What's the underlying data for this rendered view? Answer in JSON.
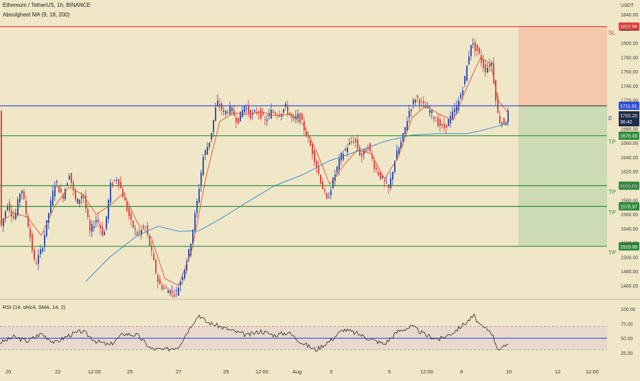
{
  "header": {
    "symbol_title": "Ethereum / TetherUS, 1h, BINANCE",
    "indicator_title": "Aboulgheet MA (9, 18, 200)",
    "currency": "USDT"
  },
  "rsi_panel": {
    "title": "RSI (14, ohlc4, SMA, 14, 2)",
    "ticks": [
      "100.00",
      "75.00",
      "50.00",
      "25.00"
    ]
  },
  "colors": {
    "background": "#f0e6c8",
    "up_candle": "#1f3fa8",
    "down_candle": "#e0332f",
    "ma_fast": "#e05a3a",
    "ma_slow": "#3a8fd0",
    "stop_zone": "#f3c2a8",
    "target_zone": "#c8d9b0",
    "sl_line": "#e03c3c",
    "entry_line": "#2f4fd8",
    "tp_line": "#2e8b3a",
    "rsi_line": "#222222",
    "rsi_band": "#e8d6cc"
  },
  "chart_data": {
    "type": "candlestick",
    "title": "Ethereum / TetherUS, 1h, BINANCE",
    "ylabel": "USDT",
    "ylim": [
      1440,
      1850
    ],
    "y_ticks": [
      "1840.00",
      "1820.00",
      "1800.00",
      "1780.00",
      "1760.00",
      "1740.00",
      "1720.00",
      "1700.00",
      "1680.00",
      "1660.00",
      "1640.00",
      "1620.00",
      "1600.00",
      "1580.00",
      "1560.00",
      "1540.00",
      "1520.00",
      "1500.00",
      "1480.00",
      "1460.00"
    ],
    "x_ticks": [
      "20",
      "22",
      "12:00",
      "25",
      "27",
      "29",
      "12:00",
      "Aug",
      "3",
      "5",
      "12:00",
      "8",
      "10",
      "12",
      "12:00"
    ],
    "price_path": [
      [
        0,
        1540
      ],
      [
        10,
        1575
      ],
      [
        20,
        1552
      ],
      [
        30,
        1600
      ],
      [
        40,
        1545
      ],
      [
        50,
        1488
      ],
      [
        60,
        1512
      ],
      [
        70,
        1562
      ],
      [
        80,
        1608
      ],
      [
        90,
        1582
      ],
      [
        100,
        1618
      ],
      [
        110,
        1575
      ],
      [
        120,
        1590
      ],
      [
        130,
        1535
      ],
      [
        140,
        1555
      ],
      [
        150,
        1528
      ],
      [
        160,
        1600
      ],
      [
        170,
        1612
      ],
      [
        180,
        1580
      ],
      [
        190,
        1548
      ],
      [
        200,
        1530
      ],
      [
        210,
        1545
      ],
      [
        220,
        1505
      ],
      [
        230,
        1462
      ],
      [
        240,
        1455
      ],
      [
        255,
        1448
      ],
      [
        265,
        1475
      ],
      [
        275,
        1510
      ],
      [
        285,
        1570
      ],
      [
        295,
        1640
      ],
      [
        305,
        1665
      ],
      [
        315,
        1718
      ],
      [
        325,
        1702
      ],
      [
        335,
        1708
      ],
      [
        345,
        1690
      ],
      [
        355,
        1712
      ],
      [
        365,
        1698
      ],
      [
        375,
        1705
      ],
      [
        385,
        1690
      ],
      [
        395,
        1705
      ],
      [
        405,
        1700
      ],
      [
        415,
        1710
      ],
      [
        425,
        1692
      ],
      [
        435,
        1698
      ],
      [
        445,
        1672
      ],
      [
        455,
        1645
      ],
      [
        465,
        1610
      ],
      [
        475,
        1578
      ],
      [
        485,
        1610
      ],
      [
        495,
        1640
      ],
      [
        505,
        1655
      ],
      [
        515,
        1665
      ],
      [
        525,
        1640
      ],
      [
        535,
        1655
      ],
      [
        545,
        1625
      ],
      [
        555,
        1610
      ],
      [
        565,
        1595
      ],
      [
        575,
        1640
      ],
      [
        585,
        1665
      ],
      [
        595,
        1705
      ],
      [
        605,
        1725
      ],
      [
        615,
        1712
      ],
      [
        625,
        1705
      ],
      [
        635,
        1690
      ],
      [
        645,
        1680
      ],
      [
        655,
        1695
      ],
      [
        665,
        1712
      ],
      [
        675,
        1745
      ],
      [
        685,
        1800
      ],
      [
        695,
        1788
      ],
      [
        705,
        1762
      ],
      [
        715,
        1772
      ],
      [
        725,
        1692
      ],
      [
        735,
        1688
      ],
      [
        740,
        1705
      ]
    ],
    "ma_fast_path": [
      [
        0,
        1548
      ],
      [
        20,
        1562
      ],
      [
        40,
        1556
      ],
      [
        60,
        1530
      ],
      [
        80,
        1572
      ],
      [
        100,
        1598
      ],
      [
        120,
        1588
      ],
      [
        140,
        1560
      ],
      [
        160,
        1572
      ],
      [
        180,
        1590
      ],
      [
        200,
        1548
      ],
      [
        220,
        1528
      ],
      [
        240,
        1470
      ],
      [
        260,
        1460
      ],
      [
        280,
        1512
      ],
      [
        300,
        1612
      ],
      [
        320,
        1690
      ],
      [
        340,
        1702
      ],
      [
        360,
        1700
      ],
      [
        380,
        1704
      ],
      [
        400,
        1698
      ],
      [
        420,
        1700
      ],
      [
        440,
        1688
      ],
      [
        460,
        1650
      ],
      [
        480,
        1602
      ],
      [
        500,
        1628
      ],
      [
        520,
        1650
      ],
      [
        540,
        1645
      ],
      [
        560,
        1610
      ],
      [
        580,
        1640
      ],
      [
        600,
        1695
      ],
      [
        620,
        1712
      ],
      [
        640,
        1700
      ],
      [
        660,
        1692
      ],
      [
        680,
        1738
      ],
      [
        700,
        1780
      ],
      [
        715,
        1770
      ],
      [
        725,
        1720
      ],
      [
        740,
        1702
      ]
    ],
    "ma_slow_path": [
      [
        125,
        1466
      ],
      [
        160,
        1500
      ],
      [
        200,
        1530
      ],
      [
        230,
        1543
      ],
      [
        260,
        1536
      ],
      [
        290,
        1537
      ],
      [
        320,
        1553
      ],
      [
        360,
        1577
      ],
      [
        400,
        1600
      ],
      [
        440,
        1615
      ],
      [
        480,
        1635
      ],
      [
        520,
        1648
      ],
      [
        560,
        1662
      ],
      [
        600,
        1671
      ],
      [
        640,
        1673
      ],
      [
        680,
        1673
      ],
      [
        700,
        1677
      ],
      [
        720,
        1682
      ],
      [
        740,
        1687
      ]
    ],
    "levels": {
      "stop_loss": {
        "label": "SL",
        "value": "1822.96",
        "y": 1822.96
      },
      "current_price": {
        "value": "1711.91",
        "y": 1711.91
      },
      "entry": {
        "label": "E",
        "value": "1705.26",
        "countdown": "36:42",
        "y": 1705.26
      },
      "targets": [
        {
          "label": "TP",
          "value": "1670.00",
          "y": 1670.0
        },
        {
          "label": "TP",
          "value": "1600.00",
          "y": 1600.0
        },
        {
          "label": "TP",
          "value": "1570.97",
          "y": 1570.97
        },
        {
          "label": "TP",
          "value": "1515.00",
          "y": 1515.0
        }
      ]
    },
    "rsi": {
      "ylim": [
        15,
        100
      ],
      "overbought": 70,
      "oversold": 30,
      "midline": 50,
      "path": [
        [
          0,
          42
        ],
        [
          20,
          52
        ],
        [
          40,
          45
        ],
        [
          60,
          58
        ],
        [
          80,
          42
        ],
        [
          100,
          55
        ],
        [
          120,
          62
        ],
        [
          140,
          45
        ],
        [
          160,
          38
        ],
        [
          180,
          58
        ],
        [
          200,
          55
        ],
        [
          220,
          32
        ],
        [
          240,
          30
        ],
        [
          260,
          36
        ],
        [
          280,
          75
        ],
        [
          290,
          90
        ],
        [
          300,
          78
        ],
        [
          320,
          70
        ],
        [
          340,
          62
        ],
        [
          360,
          55
        ],
        [
          380,
          62
        ],
        [
          400,
          55
        ],
        [
          420,
          60
        ],
        [
          440,
          42
        ],
        [
          460,
          30
        ],
        [
          480,
          45
        ],
        [
          500,
          65
        ],
        [
          520,
          58
        ],
        [
          540,
          48
        ],
        [
          560,
          40
        ],
        [
          580,
          62
        ],
        [
          600,
          70
        ],
        [
          620,
          55
        ],
        [
          640,
          48
        ],
        [
          660,
          60
        ],
        [
          680,
          78
        ],
        [
          690,
          88
        ],
        [
          700,
          70
        ],
        [
          715,
          62
        ],
        [
          725,
          32
        ],
        [
          730,
          30
        ],
        [
          740,
          42
        ]
      ]
    }
  }
}
